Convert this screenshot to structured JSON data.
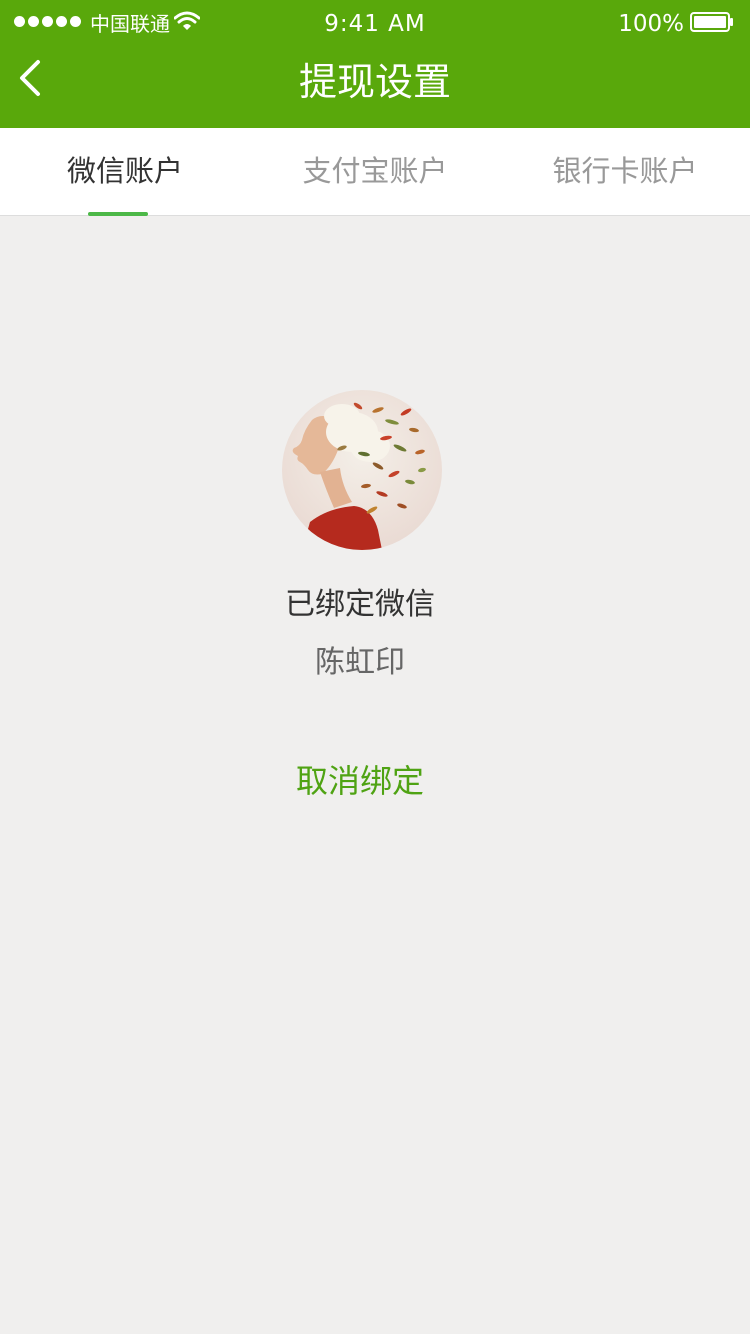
{
  "status_bar": {
    "carrier": "中国联通",
    "time": "9:41 AM",
    "battery": "100%",
    "icons": [
      "signal-dots-icon",
      "wifi-icon",
      "battery-icon"
    ]
  },
  "nav": {
    "title": "提现设置",
    "back_icon": "chevron-left-icon"
  },
  "tabs": [
    {
      "label": "微信账户",
      "active": true
    },
    {
      "label": "支付宝账户",
      "active": false
    },
    {
      "label": "银行卡账户",
      "active": false
    }
  ],
  "account": {
    "status": "已绑定微信",
    "name": "陈虹印",
    "unbind_label": "取消绑定"
  },
  "colors": {
    "header": "#59a80b",
    "accent": "#4fa313",
    "tab_indicator": "#4cb847",
    "background": "#f0efee"
  }
}
